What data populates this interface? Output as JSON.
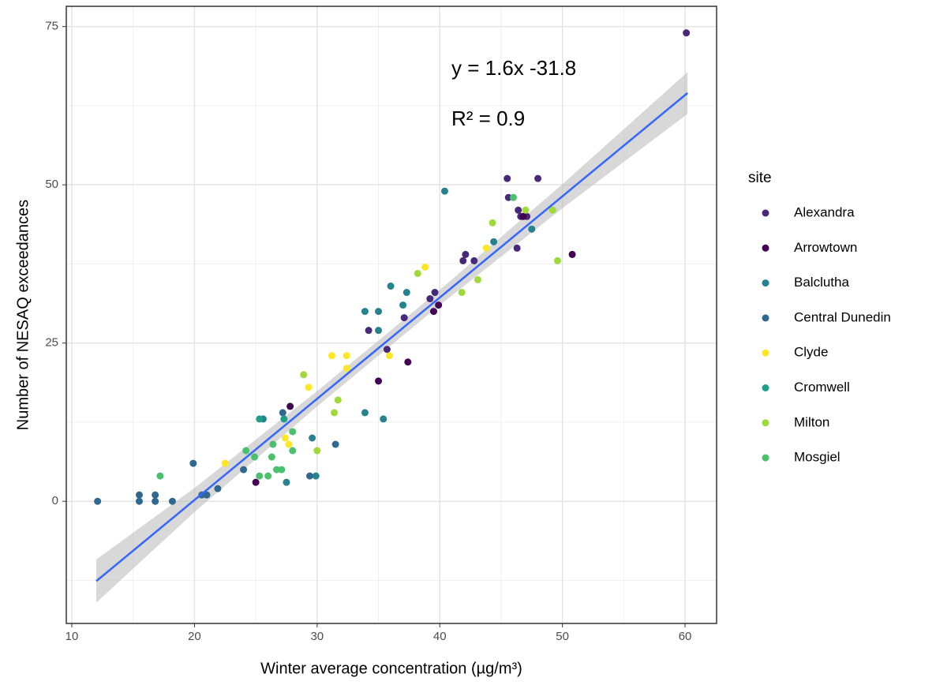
{
  "chart_data": {
    "type": "scatter",
    "x_label": "Winter average concentration (µg/m³)",
    "y_label": "Number of NESAQ exceedances",
    "annotations": [
      "y = 1.6x -31.8",
      "R² = 0.9"
    ],
    "xlim": [
      9.55,
      62.57
    ],
    "ylim": [
      -19.3,
      78.2
    ],
    "xticks": [
      10,
      20,
      30,
      40,
      50,
      60
    ],
    "yticks": [
      0,
      25,
      50,
      75
    ],
    "x_minor_ticks": [
      15,
      25,
      35,
      45,
      55
    ],
    "y_minor_ticks": [
      -12.5,
      12.5,
      37.5,
      62.5
    ],
    "grid": true,
    "legend_title": "site",
    "legend_position": "right",
    "series": [
      {
        "name": "Alexandra",
        "color": "#482878",
        "x": [
          34.2,
          35.7,
          37.1,
          39.2,
          39.6,
          41.9,
          42.1,
          42.8,
          45.5,
          45.6,
          46.3,
          46.4,
          46.6,
          47.1,
          48,
          60.1
        ],
        "values": [
          27,
          24,
          29,
          32,
          33,
          38,
          39,
          38,
          51,
          48,
          40,
          46,
          45,
          45,
          51,
          74
        ]
      },
      {
        "name": "Arrowtown",
        "color": "#440154",
        "x": [
          25,
          27.8,
          35,
          37.4,
          39.5,
          39.9,
          50.8,
          46.8
        ],
        "values": [
          3,
          15,
          19,
          22,
          30,
          31,
          39,
          45
        ]
      },
      {
        "name": "Balclutha",
        "color": "#26828E",
        "x": [
          25.6,
          27.5,
          29.6,
          29.9,
          33.9,
          33.9,
          35,
          35,
          35.4,
          36,
          37,
          37.3,
          40.4,
          44.4,
          47.5
        ],
        "values": [
          13,
          3,
          10,
          4,
          14,
          30,
          30,
          27,
          13,
          34,
          31,
          33,
          49,
          41,
          43
        ]
      },
      {
        "name": "Central Dunedin",
        "color": "#31688E",
        "x": [
          12.1,
          15.5,
          15.5,
          16.8,
          16.8,
          18.2,
          19.9,
          20.6,
          21,
          21.9,
          24,
          27.2,
          29.4,
          31.5
        ],
        "values": [
          0,
          1,
          0,
          1,
          0,
          0,
          6,
          1,
          1,
          2,
          5,
          14,
          4,
          9
        ]
      },
      {
        "name": "Clyde",
        "color": "#FDE725",
        "x": [
          22.5,
          27.4,
          27.7,
          29.3,
          31.2,
          32.4,
          32.4,
          35.9,
          38.8,
          43.8
        ],
        "values": [
          6,
          10,
          9,
          18,
          23,
          23,
          21,
          23,
          37,
          40
        ]
      },
      {
        "name": "Cromwell",
        "color": "#1F9E89",
        "x": [
          25.3,
          27.3
        ],
        "values": [
          13,
          13
        ]
      },
      {
        "name": "Milton",
        "color": "#9FDA3A",
        "x": [
          28.9,
          31.4,
          31.7,
          30,
          41.8,
          43.1,
          44.3,
          47,
          49.2,
          49.6,
          38.2
        ],
        "values": [
          20,
          14,
          16,
          8,
          33,
          35,
          44,
          46,
          46,
          38,
          36
        ]
      },
      {
        "name": "Mosgiel",
        "color": "#4AC16D",
        "x": [
          17.2,
          24.2,
          24.9,
          26,
          26.4,
          26.3,
          26.7,
          27.1,
          28,
          28,
          25.3,
          46
        ],
        "values": [
          4,
          8,
          7,
          4,
          9,
          7,
          5,
          5,
          8,
          11,
          4,
          48
        ]
      }
    ],
    "fit": {
      "color": "#3366FF",
      "x": [
        12,
        60.2
      ],
      "values": [
        -12.6,
        64.5
      ]
    },
    "band": {
      "color": "#BEBEBE",
      "x": [
        12,
        20,
        30,
        40,
        50,
        60.2
      ],
      "lower": [
        -16,
        -1.7,
        15,
        31,
        46.3,
        61.2
      ],
      "upper": [
        -9.2,
        2.1,
        17.4,
        33.4,
        50.1,
        67.8
      ]
    }
  }
}
